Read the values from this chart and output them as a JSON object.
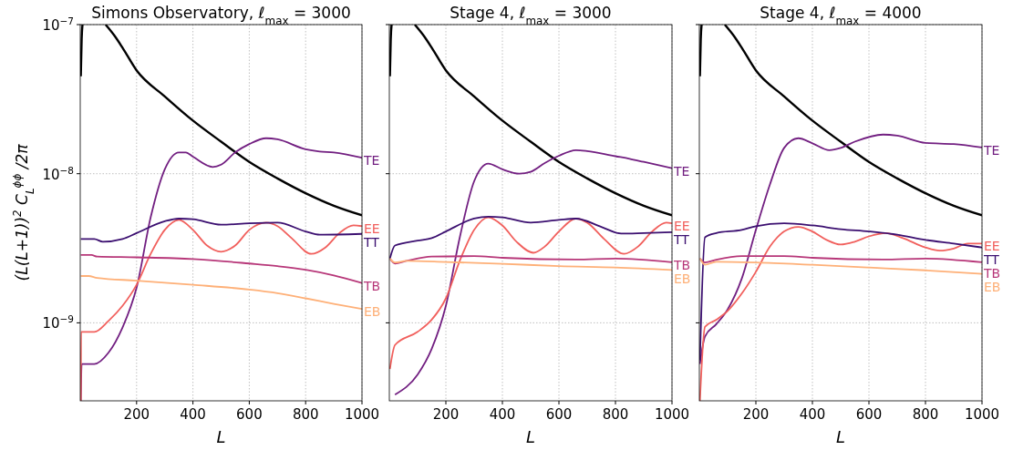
{
  "chart_data": [
    {
      "type": "line",
      "title": "Simons Observatory, ℓ$_{max}$ = 3000",
      "xlabel": "L",
      "ylabel": "(L(L+1))$^{2}$ C$_{L}$$^{ϕϕ}$ /2π",
      "log": "y",
      "grid": true,
      "line_style": "solid",
      "marker": "none",
      "xlim": [
        0,
        1000
      ],
      "xticks": [
        200,
        400,
        600,
        800,
        1000
      ],
      "ylim": [
        3e-10,
        1e-07
      ],
      "yticks": [
        {
          "value": 1e-09,
          "label": "10$^{−9}$"
        },
        {
          "value": 1e-08,
          "label": "10$^{−8}$"
        },
        {
          "value": 1e-07,
          "label": "10$^{−7}$"
        }
      ],
      "series": [
        {
          "color": "#000000",
          "x": [
            2,
            5,
            8,
            40,
            90,
            120,
            150,
            200,
            300,
            400,
            500,
            600,
            700,
            800,
            900,
            1000
          ],
          "values": [
            4.5e-08,
            8e-08,
            1e-07,
            null,
            1e-07,
            8.5e-08,
            7e-08,
            4.93e-08,
            3.3e-08,
            2.27e-08,
            1.64e-08,
            1.2e-08,
            9.3e-09,
            7.4e-09,
            6.1e-09,
            5.26e-09
          ]
        },
        {
          "name": "TE",
          "color": "#721f81",
          "x": [
            2,
            5,
            50,
            100,
            150,
            200,
            250,
            300,
            350,
            375,
            400,
            470,
            500,
            550,
            600,
            660,
            700,
            800,
            850,
            900,
            1000
          ],
          "values": [
            3e-10,
            5.3e-10,
            5.3e-10,
            6.3e-10,
            9.3e-10,
            1.72e-09,
            5.1e-09,
            1.07e-08,
            1.39e-08,
            1.39e-08,
            1.3e-08,
            1.11e-08,
            1.15e-08,
            1.39e-08,
            1.58e-08,
            1.73e-08,
            1.7e-08,
            1.46e-08,
            1.41e-08,
            1.39e-08,
            1.28e-08
          ]
        },
        {
          "name": "EE",
          "color": "#f1605d",
          "x": [
            2,
            3,
            50,
            100,
            150,
            200,
            250,
            300,
            350,
            400,
            450,
            500,
            550,
            600,
            660,
            700,
            750,
            820,
            870,
            920,
            970,
            1000
          ],
          "values": [
            3e-10,
            8.7e-10,
            8.7e-10,
            1.03e-09,
            1.3e-09,
            1.8e-09,
            2.9e-09,
            4.2e-09,
            4.9e-09,
            4.2e-09,
            3.3e-09,
            3e-09,
            3.3e-09,
            4.2e-09,
            4.7e-09,
            4.45e-09,
            3.7e-09,
            2.9e-09,
            3.2e-09,
            4e-09,
            4.5e-09,
            4.45e-09
          ]
        },
        {
          "name": "TT",
          "color": "#3b0f70",
          "x": [
            2,
            50,
            80,
            150,
            200,
            300,
            350,
            400,
            500,
            600,
            700,
            800,
            850,
            1000
          ],
          "values": [
            3.65e-09,
            3.65e-09,
            3.5e-09,
            3.65e-09,
            4e-09,
            4.8e-09,
            5e-09,
            4.95e-09,
            4.55e-09,
            4.65e-09,
            4.7e-09,
            4.1e-09,
            3.9e-09,
            3.95e-09
          ]
        },
        {
          "name": "TB",
          "color": "#b73779",
          "x": [
            2,
            40,
            60,
            200,
            400,
            600,
            700,
            800,
            900,
            1000
          ],
          "values": [
            2.85e-09,
            2.85e-09,
            2.78e-09,
            2.75e-09,
            2.68e-09,
            2.5e-09,
            2.4e-09,
            2.27e-09,
            2.08e-09,
            1.85e-09
          ]
        },
        {
          "name": "EB",
          "color": "#feb078",
          "x": [
            2,
            30,
            60,
            200,
            400,
            600,
            700,
            800,
            900,
            1000
          ],
          "values": [
            2.06e-09,
            2.06e-09,
            2e-09,
            1.92e-09,
            1.8e-09,
            1.67e-09,
            1.58e-09,
            1.46e-09,
            1.34e-09,
            1.24e-09
          ]
        }
      ]
    },
    {
      "type": "line",
      "title": "Stage 4, ℓ$_{max}$ = 3000",
      "xlabel": "L",
      "log": "y",
      "grid": true,
      "line_style": "solid",
      "marker": "none",
      "tick_labels": "x",
      "xlim": [
        0,
        1000
      ],
      "xticks": [
        200,
        400,
        600,
        800,
        1000
      ],
      "ylim": [
        3e-10,
        1e-07
      ],
      "yticks": [
        {
          "value": 1e-09,
          "label": null
        },
        {
          "value": 1e-08,
          "label": null
        },
        {
          "value": 1e-07,
          "label": null
        }
      ],
      "series": [
        {
          "color": "#000000",
          "x": [
            2,
            5,
            8,
            40,
            90,
            120,
            150,
            200,
            300,
            400,
            500,
            600,
            700,
            800,
            900,
            1000
          ],
          "values": [
            4.5e-08,
            8e-08,
            1e-07,
            null,
            1e-07,
            8.5e-08,
            7e-08,
            4.93e-08,
            3.3e-08,
            2.27e-08,
            1.64e-08,
            1.2e-08,
            9.3e-09,
            7.4e-09,
            6.1e-09,
            5.26e-09
          ]
        },
        {
          "name": "TE",
          "color": "#721f81",
          "x": [
            20,
            100,
            150,
            200,
            250,
            300,
            350,
            400,
            460,
            500,
            550,
            600,
            660,
            700,
            800,
            850,
            900,
            1000
          ],
          "values": [
            3.3e-10,
            4.5e-10,
            6.7e-10,
            1.3e-09,
            3.8e-09,
            8.9e-09,
            1.17e-08,
            1.07e-08,
            1e-08,
            1.03e-08,
            1.18e-08,
            1.32e-08,
            1.44e-08,
            1.42e-08,
            1.31e-08,
            1.26e-08,
            1.2e-08,
            1.09e-08
          ]
        },
        {
          "name": "EE",
          "color": "#f1605d",
          "x": [
            2,
            20,
            100,
            150,
            200,
            250,
            300,
            350,
            400,
            450,
            510,
            550,
            600,
            660,
            700,
            760,
            830,
            880,
            930,
            980,
            1000
          ],
          "values": [
            4.9e-10,
            7.1e-10,
            8.7e-10,
            1.05e-09,
            1.46e-09,
            2.63e-09,
            4.2e-09,
            5.1e-09,
            4.5e-09,
            3.5e-09,
            2.95e-09,
            3.25e-09,
            4.1e-09,
            5e-09,
            4.7e-09,
            3.65e-09,
            2.9e-09,
            3.25e-09,
            4.1e-09,
            4.7e-09,
            4.65e-09
          ]
        },
        {
          "name": "TT",
          "color": "#3b0f70",
          "x": [
            2,
            20,
            100,
            150,
            200,
            300,
            350,
            400,
            500,
            600,
            660,
            750,
            820,
            900,
            1000
          ],
          "values": [
            2.7e-09,
            3.3e-09,
            3.56e-09,
            3.7e-09,
            4.1e-09,
            5e-09,
            5.15e-09,
            5.1e-09,
            4.7e-09,
            4.9e-09,
            5e-09,
            4.4e-09,
            3.97e-09,
            4e-09,
            4.05e-09
          ]
        },
        {
          "name": "TB",
          "color": "#b73779",
          "x": [
            2,
            20,
            60,
            150,
            300,
            400,
            660,
            800,
            1000
          ],
          "values": [
            2.7e-09,
            2.5e-09,
            2.6e-09,
            2.78e-09,
            2.8e-09,
            2.73e-09,
            2.66e-09,
            2.7e-09,
            2.55e-09
          ]
        },
        {
          "name": "EB",
          "color": "#feb078",
          "x": [
            2,
            20,
            60,
            200,
            400,
            600,
            800,
            1000
          ],
          "values": [
            2.7e-09,
            2.54e-09,
            2.6e-09,
            2.56e-09,
            2.49e-09,
            2.4e-09,
            2.35e-09,
            2.26e-09
          ]
        }
      ]
    },
    {
      "type": "line",
      "title": "Stage 4, ℓ$_{max}$ = 4000",
      "xlabel": "L",
      "log": "y",
      "grid": true,
      "line_style": "solid",
      "marker": "none",
      "tick_labels": "x",
      "xlim": [
        0,
        1000
      ],
      "xticks": [
        200,
        400,
        600,
        800,
        1000
      ],
      "ylim": [
        3e-10,
        1e-07
      ],
      "yticks": [
        {
          "value": 1e-09,
          "label": null
        },
        {
          "value": 1e-08,
          "label": null
        },
        {
          "value": 1e-07,
          "label": null
        }
      ],
      "series": [
        {
          "color": "#000000",
          "x": [
            2,
            5,
            8,
            40,
            90,
            120,
            150,
            200,
            300,
            400,
            500,
            600,
            700,
            800,
            900,
            1000
          ],
          "values": [
            4.5e-08,
            8e-08,
            1e-07,
            null,
            1e-07,
            8.5e-08,
            7e-08,
            4.93e-08,
            3.3e-08,
            2.27e-08,
            1.64e-08,
            1.2e-08,
            9.3e-09,
            7.4e-09,
            6.1e-09,
            5.26e-09
          ]
        },
        {
          "name": "TE",
          "color": "#721f81",
          "x": [
            2,
            20,
            60,
            100,
            150,
            200,
            250,
            300,
            350,
            400,
            460,
            500,
            550,
            650,
            700,
            800,
            900,
            1000
          ],
          "values": [
            5.3e-10,
            8.1e-10,
            9.8e-10,
            1.23e-09,
            1.98e-09,
            4.2e-09,
            8.5e-09,
            1.49e-08,
            1.73e-08,
            1.6e-08,
            1.44e-08,
            1.49e-08,
            1.64e-08,
            1.83e-08,
            1.8e-08,
            1.61e-08,
            1.58e-08,
            1.5e-08
          ]
        },
        {
          "name": "EE",
          "color": "#f1605d",
          "x": [
            2,
            20,
            60,
            100,
            150,
            200,
            250,
            300,
            350,
            400,
            450,
            500,
            550,
            600,
            660,
            720,
            800,
            850,
            900,
            950,
            1000
          ],
          "values": [
            3e-10,
            9.4e-10,
            1.05e-09,
            1.2e-09,
            1.57e-09,
            2.2e-09,
            3.25e-09,
            4.1e-09,
            4.4e-09,
            4.1e-09,
            3.6e-09,
            3.35e-09,
            3.5e-09,
            3.8e-09,
            4e-09,
            3.7e-09,
            3.2e-09,
            3.05e-09,
            3.15e-09,
            3.4e-09,
            3.4e-09
          ]
        },
        {
          "name": "TT",
          "color": "#3b0f70",
          "x": [
            2,
            20,
            60,
            150,
            200,
            300,
            400,
            500,
            600,
            700,
            800,
            900,
            1000
          ],
          "values": [
            5.6e-10,
            3.75e-09,
            4e-09,
            4.2e-09,
            4.45e-09,
            4.65e-09,
            4.5e-09,
            4.25e-09,
            4.1e-09,
            3.9e-09,
            3.6e-09,
            3.4e-09,
            3.2e-09
          ]
        },
        {
          "name": "TB",
          "color": "#b73779",
          "x": [
            2,
            20,
            60,
            150,
            300,
            400,
            650,
            800,
            1000
          ],
          "values": [
            2.7e-09,
            2.54e-09,
            2.65e-09,
            2.8e-09,
            2.8e-09,
            2.73e-09,
            2.66e-09,
            2.7e-09,
            2.55e-09
          ]
        },
        {
          "name": "EB",
          "color": "#feb078",
          "x": [
            2,
            20,
            60,
            200,
            400,
            600,
            800,
            1000
          ],
          "values": [
            2.7e-09,
            2.45e-09,
            2.57e-09,
            2.54e-09,
            2.45e-09,
            2.35e-09,
            2.25e-09,
            2.13e-09
          ]
        }
      ]
    }
  ]
}
